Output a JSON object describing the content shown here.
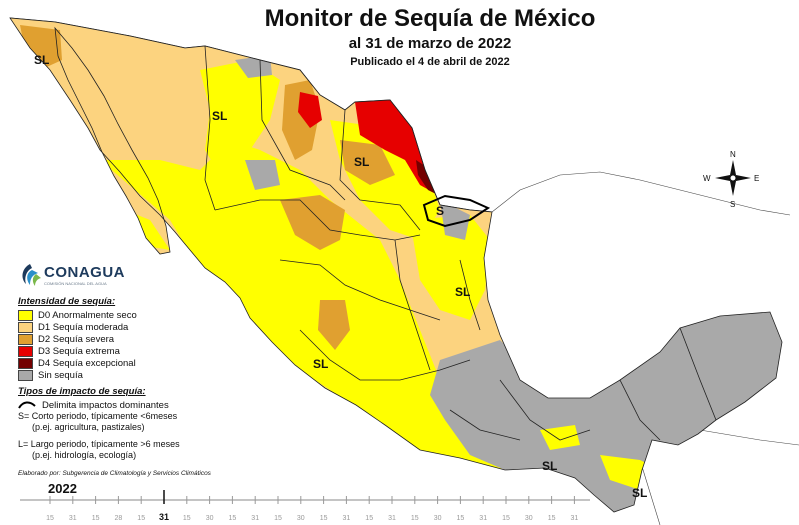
{
  "title": {
    "main": "Monitor de Sequía de México",
    "date": "al 31 de marzo de 2022",
    "published": "Publicado el 4 de abril de 2022"
  },
  "logo": {
    "name": "CONAGUA",
    "subtitle": "COMISIÓN NACIONAL DEL AGUA"
  },
  "legend": {
    "intensity_header": "Intensidad de sequía:",
    "categories": [
      {
        "label": "D0 Anormalmente seco",
        "color": "#ffff00"
      },
      {
        "label": "D1 Sequía moderada",
        "color": "#fcd37f"
      },
      {
        "label": "D2 Sequía severa",
        "color": "#e0a030"
      },
      {
        "label": "D3 Sequía extrema",
        "color": "#e60000"
      },
      {
        "label": "D4 Sequía excepcional",
        "color": "#730000"
      },
      {
        "label": "Sin sequía",
        "color": "#a9a9a9"
      }
    ],
    "impact_header": "Tipos de impacto de sequía:",
    "impact_line": "Delimita impactos dominantes",
    "short_term_1": "S= Corto periodo, típicamente <6meses",
    "short_term_2": "(p.ej. agricultura, pastizales)",
    "long_term_1": "L= Largo periodo, típicamente >6 meses",
    "long_term_2": "(p.ej. hidrología, ecología)"
  },
  "credit": "Elaborado por: Subgerencia de Climatología y Servicios Climáticos",
  "map_labels": {
    "long": "SL",
    "short": "S"
  },
  "compass": {
    "n": "N",
    "s": "S",
    "e": "E",
    "w": "W"
  },
  "timeline": {
    "year": "2022",
    "ticks": [
      "15",
      "31",
      "15",
      "28",
      "15",
      "31",
      "15",
      "30",
      "15",
      "31",
      "15",
      "30",
      "15",
      "31",
      "15",
      "31",
      "15",
      "30",
      "15",
      "31",
      "15",
      "30",
      "15",
      "31"
    ],
    "current": "31"
  }
}
